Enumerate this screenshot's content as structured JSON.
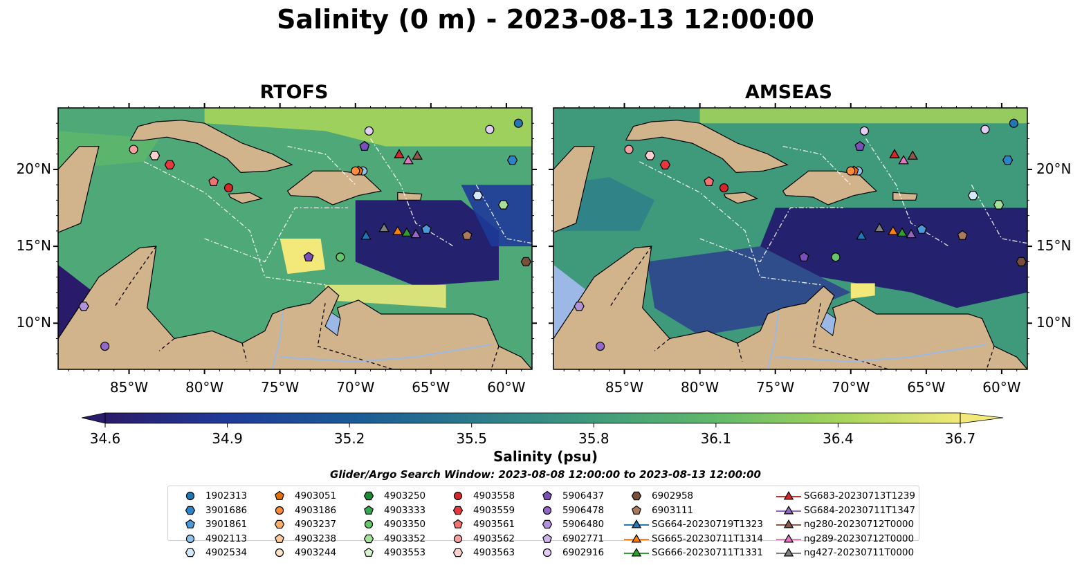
{
  "title": "Salinity (0 m) - 2023-08-13 12:00:00",
  "panels": [
    {
      "title": "RTOFS"
    },
    {
      "title": "AMSEAS"
    }
  ],
  "axes": {
    "lat_ticks": [
      "20°N",
      "15°N",
      "10°N"
    ],
    "lon_ticks": [
      "85°W",
      "80°W",
      "75°W",
      "70°W",
      "65°W",
      "60°W"
    ]
  },
  "colorbar": {
    "label": "Salinity (psu)",
    "ticks": [
      "34.6",
      "34.9",
      "35.2",
      "35.5",
      "35.8",
      "36.1",
      "36.4",
      "36.7"
    ],
    "colormap": "haline",
    "range": [
      34.6,
      36.7
    ]
  },
  "search_window": "Glider/Argo Search Window: 2023-08-08 12:00:00 to 2023-08-13 12:00:00",
  "colors": {
    "land": "#d2b48c",
    "lake": "#9bb8e6",
    "low_salinity": "#2a1a6a",
    "high_salinity": "#f2e97a"
  },
  "legend": [
    {
      "label": "1902313",
      "marker": "circle",
      "color": "#1f77b4"
    },
    {
      "label": "3901686",
      "marker": "hexagon",
      "color": "#2b84c8"
    },
    {
      "label": "3901861",
      "marker": "pentagon",
      "color": "#4a9ad8"
    },
    {
      "label": "4902113",
      "marker": "circle",
      "color": "#8fc3ee"
    },
    {
      "label": "4902534",
      "marker": "hexagon",
      "color": "#d4eafb"
    },
    {
      "label": "4903051",
      "marker": "pentagon",
      "color": "#e6700a"
    },
    {
      "label": "4903186",
      "marker": "circle",
      "color": "#fd8d3c"
    },
    {
      "label": "4903237",
      "marker": "hexagon",
      "color": "#fdae6b"
    },
    {
      "label": "4903238",
      "marker": "pentagon",
      "color": "#fdc99a"
    },
    {
      "label": "4903244",
      "marker": "circle",
      "color": "#fee3c6"
    },
    {
      "label": "4903250",
      "marker": "hexagon",
      "color": "#1e8a34"
    },
    {
      "label": "4903333",
      "marker": "pentagon",
      "color": "#36a852"
    },
    {
      "label": "4903350",
      "marker": "circle",
      "color": "#63c66a"
    },
    {
      "label": "4903352",
      "marker": "hexagon",
      "color": "#a6e19a"
    },
    {
      "label": "4903553",
      "marker": "pentagon",
      "color": "#dbf5d0"
    },
    {
      "label": "4903558",
      "marker": "circle",
      "color": "#d62728"
    },
    {
      "label": "4903559",
      "marker": "hexagon",
      "color": "#e8383d"
    },
    {
      "label": "4903561",
      "marker": "pentagon",
      "color": "#f07272"
    },
    {
      "label": "4903562",
      "marker": "circle",
      "color": "#f8a0a0"
    },
    {
      "label": "4903563",
      "marker": "hexagon",
      "color": "#fdd0d0"
    },
    {
      "label": "5906437",
      "marker": "pentagon",
      "color": "#7b4fb8"
    },
    {
      "label": "5906478",
      "marker": "circle",
      "color": "#9468c8"
    },
    {
      "label": "5906480",
      "marker": "hexagon",
      "color": "#b193da"
    },
    {
      "label": "6902771",
      "marker": "pentagon",
      "color": "#cdb5ea"
    },
    {
      "label": "6902916",
      "marker": "circle",
      "color": "#e3cff6"
    },
    {
      "label": "6902958",
      "marker": "hexagon",
      "color": "#7a4f3a"
    },
    {
      "label": "6903111",
      "marker": "pentagon",
      "color": "#a97a5e"
    },
    {
      "label": "SG664-20230719T1323",
      "marker": "triangle",
      "color": "#1f77b4",
      "line": true
    },
    {
      "label": "SG665-20230711T1314",
      "marker": "triangle",
      "color": "#ff7f0e",
      "line": true
    },
    {
      "label": "SG666-20230711T1331",
      "marker": "triangle",
      "color": "#2ca02c",
      "line": true
    },
    {
      "label": "SG683-20230713T1239",
      "marker": "triangle",
      "color": "#d62728",
      "line": true
    },
    {
      "label": "SG684-20230711T1347",
      "marker": "triangle",
      "color": "#9467bd",
      "line": true
    },
    {
      "label": "ng280-20230712T0000",
      "marker": "triangle",
      "color": "#8c564b",
      "line": true
    },
    {
      "label": "ng289-20230712T0000",
      "marker": "triangle",
      "color": "#e377c2",
      "line": true
    },
    {
      "label": "ng427-20230711T0000",
      "marker": "triangle",
      "color": "#7f7f7f",
      "line": true
    }
  ],
  "positions": [
    {
      "lon": -59.2,
      "lat": 23.0,
      "ref": "1902313"
    },
    {
      "lon": -59.6,
      "lat": 20.6,
      "ref": "3901686"
    },
    {
      "lon": -69.5,
      "lat": 19.9,
      "ref": "4902113"
    },
    {
      "lon": -61.9,
      "lat": 18.3,
      "ref": "4902534"
    },
    {
      "lon": -65.3,
      "lat": 16.1,
      "ref": "3901861"
    },
    {
      "lon": -69.8,
      "lat": 19.9,
      "ref": "4903051"
    },
    {
      "lon": -70.0,
      "lat": 19.9,
      "ref": "4903186"
    },
    {
      "lon": -60.2,
      "lat": 17.7,
      "ref": "4903352"
    },
    {
      "lon": -71.0,
      "lat": 14.3,
      "ref": "4903350"
    },
    {
      "lon": -78.4,
      "lat": 18.8,
      "ref": "4903558"
    },
    {
      "lon": -82.3,
      "lat": 20.3,
      "ref": "4903559"
    },
    {
      "lon": -79.4,
      "lat": 19.2,
      "ref": "4903561"
    },
    {
      "lon": -84.7,
      "lat": 21.3,
      "ref": "4903562"
    },
    {
      "lon": -83.3,
      "lat": 20.9,
      "ref": "4903563"
    },
    {
      "lon": -69.4,
      "lat": 21.5,
      "ref": "5906437"
    },
    {
      "lon": -73.1,
      "lat": 14.3,
      "ref": "5906437"
    },
    {
      "lon": -88.0,
      "lat": 11.1,
      "ref": "5906480"
    },
    {
      "lon": -86.6,
      "lat": 8.5,
      "ref": "5906478"
    },
    {
      "lon": -69.1,
      "lat": 22.5,
      "ref": "6902916"
    },
    {
      "lon": -61.1,
      "lat": 22.6,
      "ref": "6902916"
    },
    {
      "lon": -58.7,
      "lat": 14.0,
      "ref": "6902958"
    },
    {
      "lon": -62.6,
      "lat": 15.7,
      "ref": "6903111"
    },
    {
      "lon": -69.3,
      "lat": 15.7,
      "ref": "SG664-20230719T1323"
    },
    {
      "lon": -67.2,
      "lat": 16.0,
      "ref": "SG665-20230711T1314"
    },
    {
      "lon": -66.6,
      "lat": 15.9,
      "ref": "SG666-20230711T1331"
    },
    {
      "lon": -67.1,
      "lat": 21.0,
      "ref": "SG683-20230713T1239"
    },
    {
      "lon": -66.0,
      "lat": 15.8,
      "ref": "SG684-20230711T1347"
    },
    {
      "lon": -65.9,
      "lat": 20.9,
      "ref": "ng280-20230712T0000"
    },
    {
      "lon": -66.5,
      "lat": 20.6,
      "ref": "ng289-20230712T0000"
    },
    {
      "lon": -68.1,
      "lat": 16.2,
      "ref": "ng427-20230711T0000"
    }
  ]
}
